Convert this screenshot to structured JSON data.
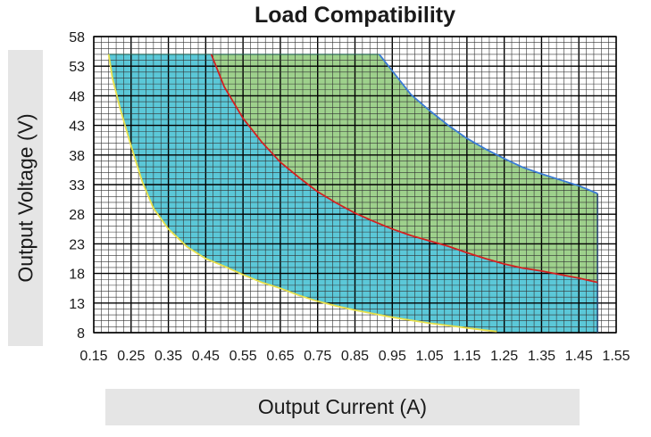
{
  "chart_data": {
    "type": "area",
    "title": "Load Compatibility",
    "xlabel": "Output Current (A)",
    "ylabel": "Output Voltage (V)",
    "xlim": [
      0.15,
      1.55
    ],
    "ylim": [
      8,
      58
    ],
    "x_ticks": [
      "0.15",
      "0.25",
      "0.35",
      "0.45",
      "0.55",
      "0.65",
      "0.75",
      "0.85",
      "0.95",
      "1.05",
      "1.15",
      "1.25",
      "1.35",
      "1.45",
      "1.55"
    ],
    "y_ticks": [
      "58",
      "53",
      "48",
      "43",
      "38",
      "33",
      "28",
      "23",
      "18",
      "13",
      "8"
    ],
    "grid": true,
    "colors": {
      "cyan_fill": "#5bc8d8",
      "green_fill": "#9ed18c",
      "yellow_line": "#e8e04a",
      "red_line": "#d42020",
      "blue_line": "#3a7bd5",
      "grid_minor": "#333333",
      "grid_major": "#000000"
    },
    "series": [
      {
        "color": "#e8e04a",
        "x": [
          0.19,
          0.2,
          0.22,
          0.25,
          0.28,
          0.31,
          0.35,
          0.4,
          0.45,
          0.5,
          0.55,
          0.6,
          0.65,
          0.7,
          0.75,
          0.8,
          0.85,
          0.9,
          0.95,
          1.0,
          1.05,
          1.1,
          1.15,
          1.2,
          1.23
        ],
        "y": [
          55,
          51,
          46,
          39.5,
          33.5,
          29,
          25.5,
          22.5,
          20.5,
          19.2,
          17.8,
          16.5,
          15.5,
          14.3,
          13.3,
          12.5,
          11.8,
          11.2,
          10.6,
          10.1,
          9.6,
          9.2,
          8.8,
          8.4,
          8.2
        ]
      },
      {
        "color": "#d42020",
        "x": [
          0.465,
          0.5,
          0.55,
          0.6,
          0.65,
          0.7,
          0.75,
          0.8,
          0.85,
          0.9,
          0.95,
          1.0,
          1.05,
          1.1,
          1.15,
          1.2,
          1.25,
          1.3,
          1.35,
          1.4,
          1.45,
          1.5
        ],
        "y": [
          55,
          49.5,
          44.2,
          40.2,
          36.8,
          34.2,
          31.8,
          29.9,
          28.2,
          26.8,
          25.5,
          24.4,
          23.5,
          22.6,
          21.5,
          20.5,
          19.6,
          18.9,
          18.4,
          17.8,
          17.2,
          16.5
        ]
      },
      {
        "color": "#3a7bd5",
        "x": [
          0.915,
          0.95,
          1.0,
          1.05,
          1.1,
          1.15,
          1.2,
          1.25,
          1.3,
          1.35,
          1.4,
          1.45,
          1.5
        ],
        "y": [
          55,
          52.2,
          48.2,
          45.5,
          43,
          40.8,
          39,
          37.4,
          35.9,
          34.8,
          33.8,
          32.8,
          31.5
        ]
      }
    ]
  }
}
